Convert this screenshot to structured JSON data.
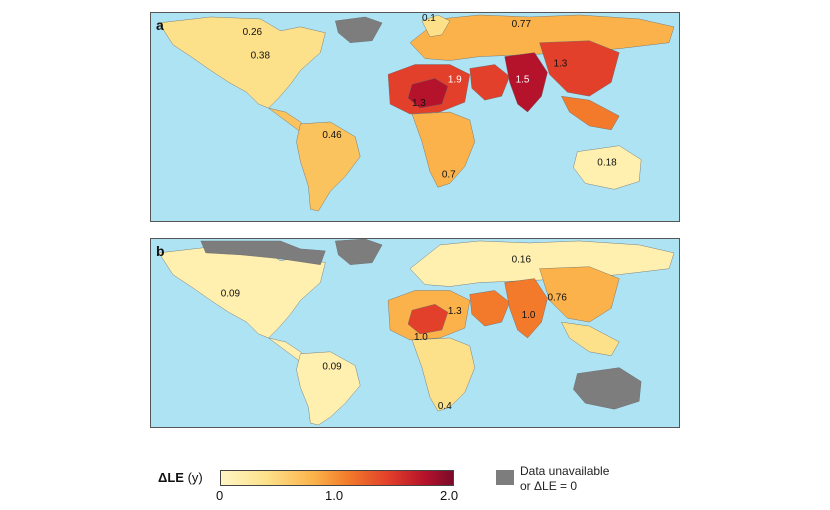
{
  "panels": [
    {
      "label": "a",
      "annotations": [
        "0.26",
        "0.1",
        "0.77",
        "0.38",
        "1.9",
        "1.5",
        "1.3",
        "1.3",
        "0.46",
        "0.18",
        "0.7"
      ]
    },
    {
      "label": "b",
      "annotations": [
        "0.16",
        "0.09",
        "1.3",
        "0.76",
        "1.0",
        "1.0",
        "0.09",
        "0.4"
      ]
    }
  ],
  "legend": {
    "title_symbol": "ΔLE",
    "title_unit": "(y)",
    "ticks": [
      "0",
      "1.0",
      "2.0"
    ],
    "unavailable_line1": "Data unavailable",
    "unavailable_line2": "or ΔLE = 0"
  },
  "colors": {
    "ocean": "#aee3f4",
    "unavailable": "#7d7d7d",
    "scale": [
      "#fff6c4",
      "#fde08a",
      "#fbb24a",
      "#f27a2a",
      "#e2402a",
      "#b5122b",
      "#7a0a2a"
    ]
  }
}
